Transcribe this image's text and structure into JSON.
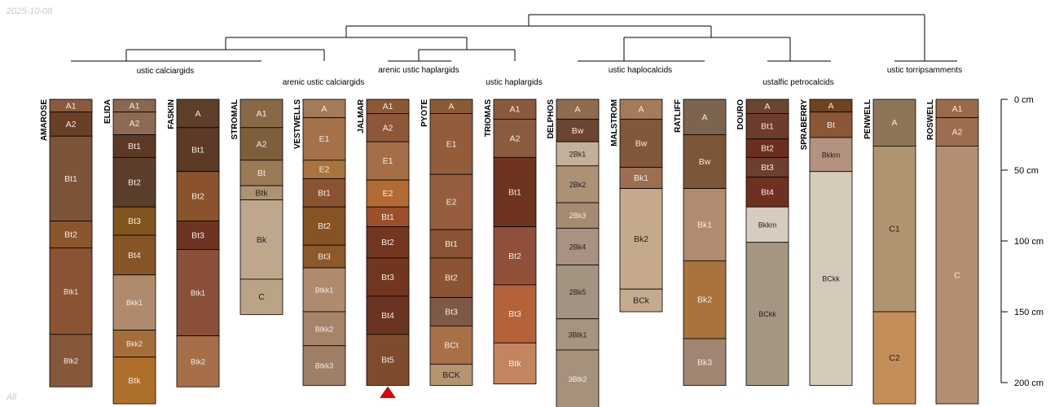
{
  "date_stamp": "2025-10-08",
  "filter_label": "All",
  "depth_axis": {
    "unit": "cm",
    "max": 200,
    "ticks": [
      {
        "value": 0,
        "label": "0 cm"
      },
      {
        "value": 50,
        "label": "50 cm"
      },
      {
        "value": 100,
        "label": "100 cm"
      },
      {
        "value": 150,
        "label": "150 cm"
      },
      {
        "value": 200,
        "label": "200 cm"
      }
    ]
  },
  "groups": [
    {
      "id": "calciargids",
      "label": "ustic calciargids"
    },
    {
      "id": "arenic_calciargids",
      "label": "arenic ustic calciargids"
    },
    {
      "id": "arenic_haplargids",
      "label": "arenic ustic haplargids"
    },
    {
      "id": "haplargids",
      "label": "ustic haplargids"
    },
    {
      "id": "haplocalcids",
      "label": "ustic haplocalcids"
    },
    {
      "id": "petrocalcids",
      "label": "ustalfic petrocalcids"
    },
    {
      "id": "torripsamments",
      "label": "ustic torripsamments"
    }
  ],
  "profiles": [
    {
      "name": "AMAROSE",
      "horizons": [
        {
          "name": "A1",
          "top": 0,
          "bottom": 9,
          "color": "#8a5a3e"
        },
        {
          "name": "A2",
          "top": 9,
          "bottom": 26,
          "color": "#6b3f26"
        },
        {
          "name": "Bt1",
          "top": 26,
          "bottom": 86,
          "color": "#7e5439"
        },
        {
          "name": "Bt2",
          "top": 86,
          "bottom": 105,
          "color": "#8c552e"
        },
        {
          "name": "Btk1",
          "top": 105,
          "bottom": 166,
          "color": "#8a5433"
        },
        {
          "name": "Btk2",
          "top": 166,
          "bottom": 203,
          "color": "#87573a"
        }
      ]
    },
    {
      "name": "ELIDA",
      "horizons": [
        {
          "name": "A1",
          "top": 0,
          "bottom": 9,
          "color": "#8a6750"
        },
        {
          "name": "A2",
          "top": 9,
          "bottom": 25,
          "color": "#8d6a52"
        },
        {
          "name": "Bt1",
          "top": 25,
          "bottom": 41,
          "color": "#5e3a26"
        },
        {
          "name": "Bt2",
          "top": 41,
          "bottom": 76,
          "color": "#5b3e2a"
        },
        {
          "name": "Bt3",
          "top": 76,
          "bottom": 96,
          "color": "#82551f"
        },
        {
          "name": "Bt4",
          "top": 96,
          "bottom": 124,
          "color": "#875426"
        },
        {
          "name": "Bkk1",
          "top": 124,
          "bottom": 163,
          "color": "#b08a6d"
        },
        {
          "name": "Bkk2",
          "top": 163,
          "bottom": 182,
          "color": "#a46e3a"
        },
        {
          "name": "Btk",
          "top": 182,
          "bottom": 215,
          "color": "#ad6f29"
        }
      ]
    },
    {
      "name": "FASKIN",
      "horizons": [
        {
          "name": "A",
          "top": 0,
          "bottom": 20,
          "color": "#5e3f29"
        },
        {
          "name": "Bt1",
          "top": 20,
          "bottom": 51,
          "color": "#5c3a26"
        },
        {
          "name": "Bt2",
          "top": 51,
          "bottom": 86,
          "color": "#8a532e"
        },
        {
          "name": "Bt3",
          "top": 86,
          "bottom": 106,
          "color": "#6e3421"
        },
        {
          "name": "Btk1",
          "top": 106,
          "bottom": 167,
          "color": "#8a5038"
        },
        {
          "name": "Btk2",
          "top": 167,
          "bottom": 203,
          "color": "#a76e4a"
        }
      ]
    },
    {
      "name": "STROMAL",
      "horizons": [
        {
          "name": "A1",
          "top": 0,
          "bottom": 20,
          "color": "#896847"
        },
        {
          "name": "A2",
          "top": 20,
          "bottom": 43,
          "color": "#7e5f3b"
        },
        {
          "name": "Bt",
          "top": 43,
          "bottom": 61,
          "color": "#9a7a57"
        },
        {
          "name": "Btk",
          "top": 61,
          "bottom": 71,
          "color": "#ad9273"
        },
        {
          "name": "Bk",
          "top": 71,
          "bottom": 127,
          "color": "#bfa78e"
        },
        {
          "name": "C",
          "top": 127,
          "bottom": 152,
          "color": "#bba486"
        }
      ]
    },
    {
      "name": "VESTWELLS",
      "horizons": [
        {
          "name": "A",
          "top": 0,
          "bottom": 13,
          "color": "#a37a5a"
        },
        {
          "name": "E1",
          "top": 13,
          "bottom": 43,
          "color": "#a4714c"
        },
        {
          "name": "E2",
          "top": 43,
          "bottom": 56,
          "color": "#a8733d"
        },
        {
          "name": "Bt1",
          "top": 56,
          "bottom": 76,
          "color": "#8a5330"
        },
        {
          "name": "Bt2",
          "top": 76,
          "bottom": 103,
          "color": "#865424"
        },
        {
          "name": "Bt3",
          "top": 103,
          "bottom": 119,
          "color": "#8c5a2a"
        },
        {
          "name": "Btkk1",
          "top": 119,
          "bottom": 150,
          "color": "#b08a6d"
        },
        {
          "name": "Btkk2",
          "top": 150,
          "bottom": 174,
          "color": "#a6846a"
        },
        {
          "name": "Btkk3",
          "top": 174,
          "bottom": 202,
          "color": "#9f7f66"
        }
      ]
    },
    {
      "name": "JALMAR",
      "marker": true,
      "horizons": [
        {
          "name": "A1",
          "top": 0,
          "bottom": 10,
          "color": "#8a5737"
        },
        {
          "name": "A2",
          "top": 10,
          "bottom": 30,
          "color": "#8d5738"
        },
        {
          "name": "E1",
          "top": 30,
          "bottom": 57,
          "color": "#a46f48"
        },
        {
          "name": "E2",
          "top": 57,
          "bottom": 76,
          "color": "#b26b32"
        },
        {
          "name": "Bt1",
          "top": 76,
          "bottom": 90,
          "color": "#9d4f2c"
        },
        {
          "name": "Bt2",
          "top": 90,
          "bottom": 112,
          "color": "#73361f"
        },
        {
          "name": "Bt3",
          "top": 112,
          "bottom": 139,
          "color": "#72361f"
        },
        {
          "name": "Bt4",
          "top": 139,
          "bottom": 166,
          "color": "#6a3420"
        },
        {
          "name": "Bt5",
          "top": 166,
          "bottom": 202,
          "color": "#7e4c2c"
        }
      ]
    },
    {
      "name": "PYOTE",
      "horizons": [
        {
          "name": "A",
          "top": 0,
          "bottom": 10,
          "color": "#8a5a34"
        },
        {
          "name": "E1",
          "top": 10,
          "bottom": 53,
          "color": "#935d3c"
        },
        {
          "name": "E2",
          "top": 53,
          "bottom": 92,
          "color": "#965e3e"
        },
        {
          "name": "Bt1",
          "top": 92,
          "bottom": 112,
          "color": "#8a5434"
        },
        {
          "name": "Bt2",
          "top": 112,
          "bottom": 140,
          "color": "#8b5433"
        },
        {
          "name": "Bt3",
          "top": 140,
          "bottom": 160,
          "color": "#7d5946"
        },
        {
          "name": "BCt",
          "top": 160,
          "bottom": 187,
          "color": "#a96f48"
        },
        {
          "name": "BCK",
          "top": 187,
          "bottom": 202,
          "color": "#b59570"
        }
      ]
    },
    {
      "name": "TRIOMAS",
      "horizons": [
        {
          "name": "A1",
          "top": 0,
          "bottom": 14,
          "color": "#8a5a3e"
        },
        {
          "name": "A2",
          "top": 14,
          "bottom": 41,
          "color": "#895c40"
        },
        {
          "name": "Bt1",
          "top": 41,
          "bottom": 90,
          "color": "#6e3421"
        },
        {
          "name": "Bt2",
          "top": 90,
          "bottom": 131,
          "color": "#8f4f38"
        },
        {
          "name": "Bt3",
          "top": 131,
          "bottom": 172,
          "color": "#b4623a"
        },
        {
          "name": "Btk",
          "top": 172,
          "bottom": 201,
          "color": "#c3855f"
        }
      ]
    },
    {
      "name": "DELPHOS",
      "horizons": [
        {
          "name": "A",
          "top": 0,
          "bottom": 14,
          "color": "#8f6b4f"
        },
        {
          "name": "Bw",
          "top": 14,
          "bottom": 30,
          "color": "#6b4530"
        },
        {
          "name": "2Bk1",
          "top": 30,
          "bottom": 47,
          "color": "#c4b09a"
        },
        {
          "name": "2Bk2",
          "top": 47,
          "bottom": 73,
          "color": "#ad9174"
        },
        {
          "name": "2Bk3",
          "top": 73,
          "bottom": 91,
          "color": "#a58b72"
        },
        {
          "name": "2Bk4",
          "top": 91,
          "bottom": 117,
          "color": "#a99281"
        },
        {
          "name": "2Bk5",
          "top": 117,
          "bottom": 155,
          "color": "#a39482"
        },
        {
          "name": "3Btk1",
          "top": 155,
          "bottom": 177,
          "color": "#a69481"
        },
        {
          "name": "3Btk2",
          "top": 177,
          "bottom": 218,
          "color": "#a6917c"
        }
      ]
    },
    {
      "name": "MALSTROM",
      "horizons": [
        {
          "name": "A",
          "top": 0,
          "bottom": 14,
          "color": "#a37a5a"
        },
        {
          "name": "Bw",
          "top": 14,
          "bottom": 48,
          "color": "#82573a"
        },
        {
          "name": "Bk1",
          "top": 48,
          "bottom": 63,
          "color": "#9c6e52"
        },
        {
          "name": "Bk2",
          "top": 63,
          "bottom": 134,
          "color": "#c4aa8a"
        },
        {
          "name": "BCk",
          "top": 134,
          "bottom": 150,
          "color": "#c4ab8d"
        }
      ]
    },
    {
      "name": "RATLIFF",
      "horizons": [
        {
          "name": "A",
          "top": 0,
          "bottom": 25,
          "color": "#7d644f"
        },
        {
          "name": "Bw",
          "top": 25,
          "bottom": 63,
          "color": "#7d5638"
        },
        {
          "name": "Bk1",
          "top": 63,
          "bottom": 114,
          "color": "#b08b6f"
        },
        {
          "name": "Bk2",
          "top": 114,
          "bottom": 169,
          "color": "#a8733d"
        },
        {
          "name": "Bk3",
          "top": 169,
          "bottom": 202,
          "color": "#a08672"
        }
      ]
    },
    {
      "name": "DOURO",
      "horizons": [
        {
          "name": "A",
          "top": 0,
          "bottom": 10,
          "color": "#6b4530"
        },
        {
          "name": "Bt1",
          "top": 10,
          "bottom": 28,
          "color": "#6e3c2c"
        },
        {
          "name": "Bt2",
          "top": 28,
          "bottom": 41,
          "color": "#6e2e1e"
        },
        {
          "name": "Bt3",
          "top": 41,
          "bottom": 55,
          "color": "#6e3e2e"
        },
        {
          "name": "Bt4",
          "top": 55,
          "bottom": 76,
          "color": "#6f3020"
        },
        {
          "name": "Bkkm",
          "top": 76,
          "bottom": 101,
          "color": "#d6ccbf"
        },
        {
          "name": "BCkk",
          "top": 101,
          "bottom": 202,
          "color": "#a59583"
        }
      ]
    },
    {
      "name": "SPRABERRY",
      "horizons": [
        {
          "name": "A",
          "top": 0,
          "bottom": 9,
          "color": "#6e4322"
        },
        {
          "name": "Bt",
          "top": 9,
          "bottom": 27,
          "color": "#8a5737"
        },
        {
          "name": "Bkkm",
          "top": 27,
          "bottom": 51,
          "color": "#b39380"
        },
        {
          "name": "BCkk",
          "top": 51,
          "bottom": 202,
          "color": "#d6cabb"
        }
      ]
    },
    {
      "name": "PENWELL",
      "horizons": [
        {
          "name": "A",
          "top": 0,
          "bottom": 33,
          "color": "#8f7558"
        },
        {
          "name": "C1",
          "top": 33,
          "bottom": 150,
          "color": "#b09470"
        },
        {
          "name": "C2",
          "top": 150,
          "bottom": 215,
          "color": "#c38e58"
        }
      ]
    },
    {
      "name": "ROSWELL",
      "horizons": [
        {
          "name": "A1",
          "top": 0,
          "bottom": 13,
          "color": "#9a6a4a"
        },
        {
          "name": "A2",
          "top": 13,
          "bottom": 33,
          "color": "#9d6d4f"
        },
        {
          "name": "C",
          "top": 33,
          "bottom": 215,
          "color": "#b38e70"
        }
      ]
    }
  ]
}
